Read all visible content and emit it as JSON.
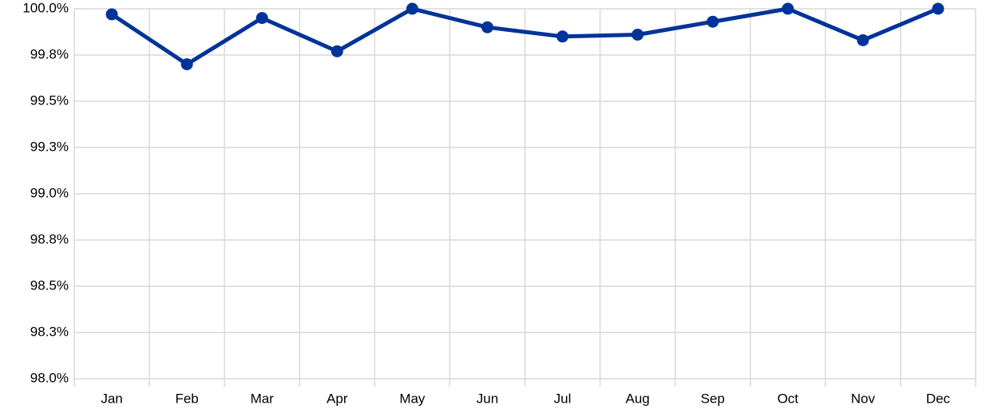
{
  "chart_data": {
    "type": "line",
    "categories": [
      "Jan",
      "Feb",
      "Mar",
      "Apr",
      "May",
      "Jun",
      "Jul",
      "Aug",
      "Sep",
      "Oct",
      "Nov",
      "Dec"
    ],
    "values": [
      99.97,
      99.7,
      99.95,
      99.77,
      100.0,
      99.9,
      99.85,
      99.86,
      99.93,
      100.0,
      99.83,
      100.0
    ],
    "color": "#003399",
    "ylim": [
      98.0,
      100.0
    ],
    "yticks": [
      {
        "value": 98.0,
        "label": "98.0%"
      },
      {
        "value": 98.25,
        "label": "98.3%"
      },
      {
        "value": 98.5,
        "label": "98.5%"
      },
      {
        "value": 98.75,
        "label": "98.8%"
      },
      {
        "value": 99.0,
        "label": "99.0%"
      },
      {
        "value": 99.25,
        "label": "99.3%"
      },
      {
        "value": 99.5,
        "label": "99.5%"
      },
      {
        "value": 99.75,
        "label": "99.8%"
      },
      {
        "value": 100.0,
        "label": "100.0%"
      }
    ],
    "grid": true
  }
}
